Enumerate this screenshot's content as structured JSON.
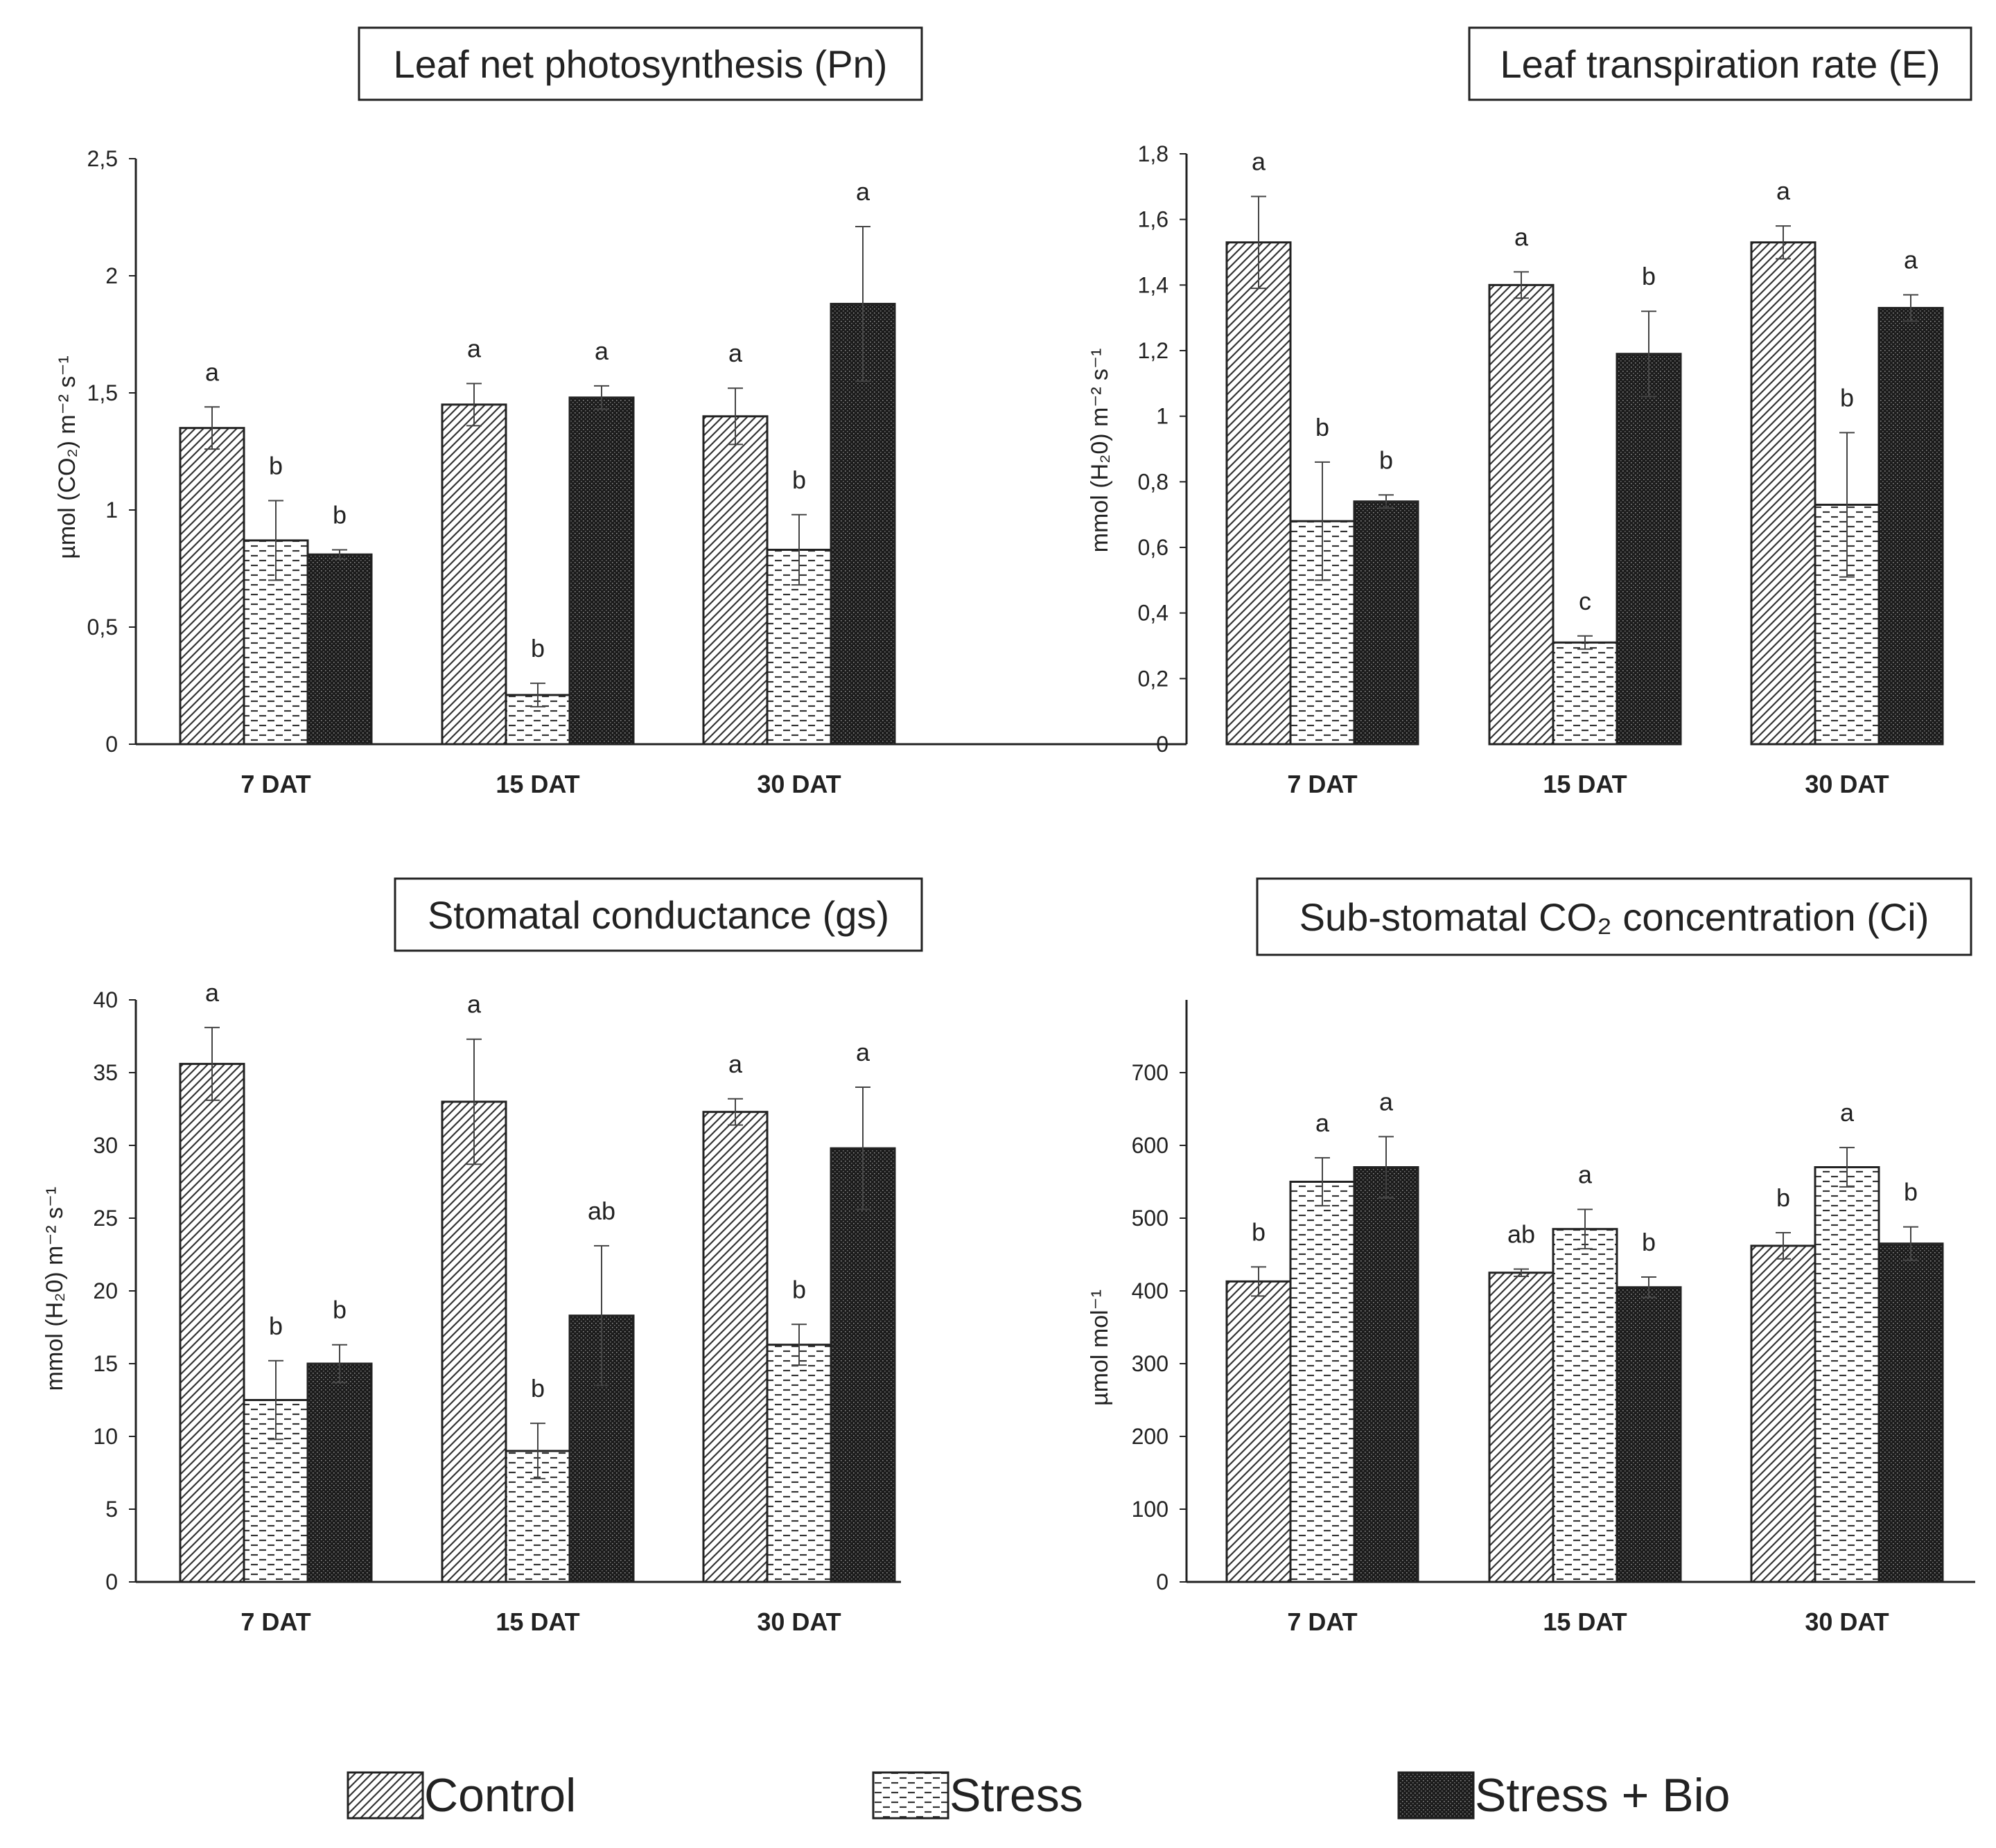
{
  "figure": {
    "categories": [
      "7 DAT",
      "15 DAT",
      "30 DAT"
    ],
    "series_names": [
      "Control",
      "Stress",
      "Stress + Bio"
    ],
    "legend": [
      {
        "label": "Control",
        "pattern": "hatch-diagonal"
      },
      {
        "label": "Stress",
        "pattern": "dashes"
      },
      {
        "label": "Stress + Bio",
        "pattern": "dense-dark"
      }
    ],
    "colors": {
      "axis": "#222222",
      "bar_fill": "#ffffff",
      "dark_fill": "#222222"
    }
  },
  "chart_data": [
    {
      "type": "bar",
      "title": "Leaf net photosynthesis (Pn)",
      "ylabel": "µmol (CO₂) m⁻² s⁻¹",
      "ylim": [
        0,
        2.5
      ],
      "yticks": [
        "0",
        "0,5",
        "1",
        "1,5",
        "2",
        "2,5"
      ],
      "categories": [
        "7 DAT",
        "15 DAT",
        "30 DAT"
      ],
      "series": [
        {
          "name": "Control",
          "values": [
            1.35,
            1.45,
            1.4
          ],
          "errors": [
            0.09,
            0.09,
            0.12
          ],
          "letters": [
            "a",
            "a",
            "a"
          ]
        },
        {
          "name": "Stress",
          "values": [
            0.87,
            0.21,
            0.83
          ],
          "errors": [
            0.17,
            0.05,
            0.15
          ],
          "letters": [
            "b",
            "b",
            "b"
          ]
        },
        {
          "name": "Stress + Bio",
          "values": [
            0.81,
            1.48,
            1.88
          ],
          "errors": [
            0.02,
            0.05,
            0.33
          ],
          "letters": [
            "b",
            "a",
            "a"
          ]
        }
      ]
    },
    {
      "type": "bar",
      "title": "Leaf transpiration rate  (E)",
      "ylabel": "mmol (H₂0) m⁻² s⁻¹",
      "ylim": [
        0,
        1.8
      ],
      "yticks": [
        "0",
        "0,2",
        "0,4",
        "0,6",
        "0,8",
        "1",
        "1,2",
        "1,4",
        "1,6",
        "1,8"
      ],
      "categories": [
        "7 DAT",
        "15 DAT",
        "30 DAT"
      ],
      "series": [
        {
          "name": "Control",
          "values": [
            1.53,
            1.4,
            1.53
          ],
          "errors": [
            0.14,
            0.04,
            0.05
          ],
          "letters": [
            "a",
            "a",
            "a"
          ]
        },
        {
          "name": "Stress",
          "values": [
            0.68,
            0.31,
            0.73
          ],
          "errors": [
            0.18,
            0.02,
            0.22
          ],
          "letters": [
            "b",
            "c",
            "b"
          ]
        },
        {
          "name": "Stress + Bio",
          "values": [
            0.74,
            1.19,
            1.33
          ],
          "errors": [
            0.02,
            0.13,
            0.04
          ],
          "letters": [
            "b",
            "b",
            "a"
          ]
        }
      ]
    },
    {
      "type": "bar",
      "title": "Stomatal conductance (gs)",
      "ylabel": "mmol (H₂0) m⁻² s⁻¹",
      "ylim": [
        0,
        40
      ],
      "yticks": [
        "0",
        "5",
        "10",
        "15",
        "20",
        "25",
        "30",
        "35",
        "40"
      ],
      "categories": [
        "7 DAT",
        "15 DAT",
        "30 DAT"
      ],
      "series": [
        {
          "name": "Control",
          "values": [
            35.6,
            33.0,
            32.3
          ],
          "errors": [
            2.5,
            4.3,
            0.9
          ],
          "letters": [
            "a",
            "a",
            "a"
          ]
        },
        {
          "name": "Stress",
          "values": [
            12.5,
            9.0,
            16.3
          ],
          "errors": [
            2.7,
            1.9,
            1.4
          ],
          "letters": [
            "b",
            "b",
            "b"
          ]
        },
        {
          "name": "Stress + Bio",
          "values": [
            15.0,
            18.3,
            29.8
          ],
          "errors": [
            1.3,
            4.8,
            4.2
          ],
          "letters": [
            "b",
            "ab",
            "a"
          ]
        }
      ]
    },
    {
      "type": "bar",
      "title": "Sub-stomatal CO₂ concentration (Ci)",
      "ylabel": "µmol mol⁻¹",
      "ylim": [
        0,
        800
      ],
      "yticks": [
        "0",
        "100",
        "200",
        "300",
        "400",
        "500",
        "600",
        "700"
      ],
      "categories": [
        "7 DAT",
        "15 DAT",
        "30 DAT"
      ],
      "series": [
        {
          "name": "Control",
          "values": [
            413,
            425,
            462
          ],
          "errors": [
            20,
            5,
            18
          ],
          "letters": [
            "b",
            "ab",
            "b"
          ]
        },
        {
          "name": "Stress",
          "values": [
            550,
            485,
            570
          ],
          "errors": [
            33,
            27,
            27
          ],
          "letters": [
            "a",
            "a",
            "a"
          ]
        },
        {
          "name": "Stress + Bio",
          "values": [
            570,
            405,
            465
          ],
          "errors": [
            42,
            14,
            23
          ],
          "letters": [
            "a",
            "b",
            "b"
          ]
        }
      ]
    }
  ]
}
